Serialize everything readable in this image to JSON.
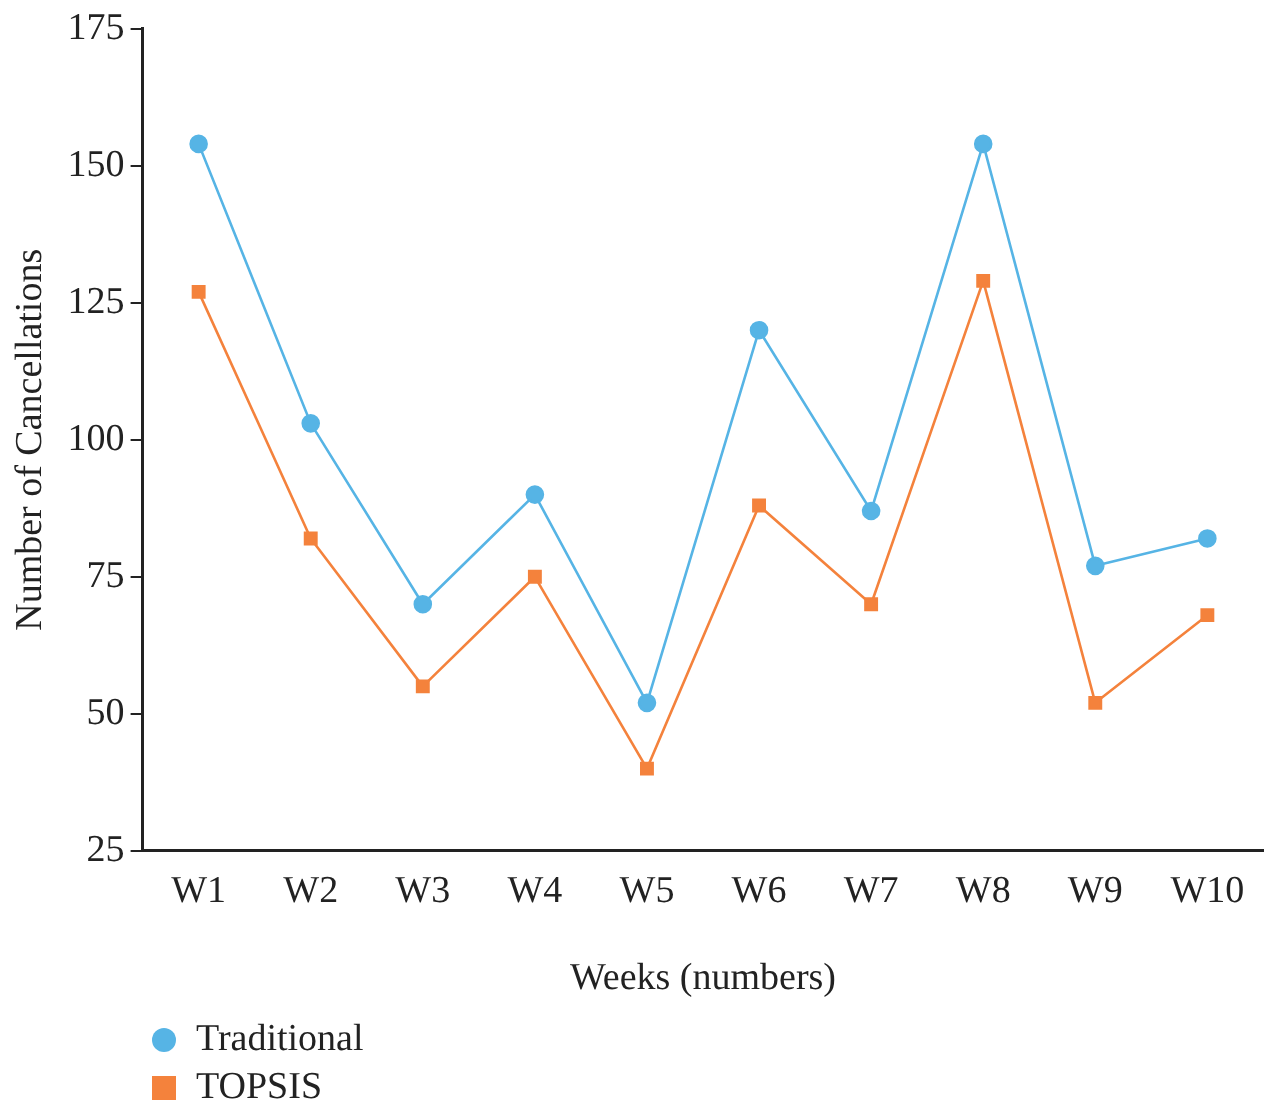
{
  "chart_data": {
    "type": "line",
    "xlabel": "Weeks (numbers)",
    "ylabel": "Number of Cancellations",
    "categories": [
      "W1",
      "W2",
      "W3",
      "W4",
      "W5",
      "W6",
      "W7",
      "W8",
      "W9",
      "W10"
    ],
    "series": [
      {
        "name": "Traditional",
        "color": "#56b4e5",
        "marker": "circle",
        "values": [
          154,
          103,
          70,
          90,
          52,
          120,
          87,
          154,
          77,
          82
        ]
      },
      {
        "name": "TOPSIS",
        "color": "#f4823c",
        "marker": "square",
        "values": [
          127,
          82,
          55,
          75,
          40,
          88,
          70,
          129,
          52,
          68
        ]
      }
    ],
    "ylim": [
      25,
      175
    ],
    "yticks": [
      25,
      50,
      75,
      100,
      125,
      150,
      175
    ],
    "grid": false,
    "legend": "bottom left",
    "line_style": "solid"
  }
}
